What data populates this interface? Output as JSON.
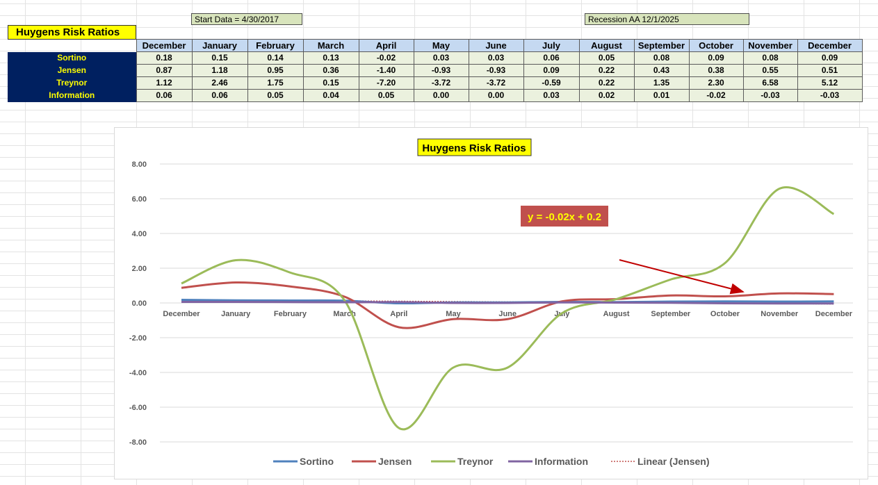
{
  "notes": {
    "start": "Start Data = 4/30/2017",
    "recession": "Recession AA 12/1/2025"
  },
  "sheet_title": "Huygens Risk Ratios",
  "table": {
    "months": [
      "December",
      "January",
      "February",
      "March",
      "April",
      "May",
      "June",
      "July",
      "August",
      "September",
      "October",
      "November",
      "December"
    ],
    "rows": [
      {
        "label": "Sortino",
        "values": [
          "0.18",
          "0.15",
          "0.14",
          "0.13",
          "-0.02",
          "0.03",
          "0.03",
          "0.06",
          "0.05",
          "0.08",
          "0.09",
          "0.08",
          "0.09"
        ]
      },
      {
        "label": "Jensen",
        "values": [
          "0.87",
          "1.18",
          "0.95",
          "0.36",
          "-1.40",
          "-0.93",
          "-0.93",
          "0.09",
          "0.22",
          "0.43",
          "0.38",
          "0.55",
          "0.51"
        ]
      },
      {
        "label": "Treynor",
        "values": [
          "1.12",
          "2.46",
          "1.75",
          "0.15",
          "-7.20",
          "-3.72",
          "-3.72",
          "-0.59",
          "0.22",
          "1.35",
          "2.30",
          "6.58",
          "5.12"
        ]
      },
      {
        "label": "Information",
        "values": [
          "0.06",
          "0.06",
          "0.05",
          "0.04",
          "0.05",
          "0.00",
          "0.00",
          "0.03",
          "0.02",
          "0.01",
          "-0.02",
          "-0.03",
          "-0.03"
        ]
      }
    ]
  },
  "chart_data": {
    "type": "line",
    "title": "Huygens Risk Ratios",
    "categories": [
      "December",
      "January",
      "February",
      "March",
      "April",
      "May",
      "June",
      "July",
      "August",
      "September",
      "October",
      "November",
      "December"
    ],
    "ylim": [
      -8,
      8
    ],
    "yticks": [
      "8.00",
      "6.00",
      "4.00",
      "2.00",
      "0.00",
      "-2.00",
      "-4.00",
      "-6.00",
      "-8.00"
    ],
    "ytick_values": [
      8,
      6,
      4,
      2,
      0,
      -2,
      -4,
      -6,
      -8
    ],
    "grid": true,
    "legend_position": "bottom",
    "series": [
      {
        "name": "Sortino",
        "color": "#4f81bd",
        "values": [
          0.18,
          0.15,
          0.14,
          0.13,
          -0.02,
          0.03,
          0.03,
          0.06,
          0.05,
          0.08,
          0.09,
          0.08,
          0.09
        ]
      },
      {
        "name": "Jensen",
        "color": "#c0504d",
        "values": [
          0.87,
          1.18,
          0.95,
          0.36,
          -1.4,
          -0.93,
          -0.93,
          0.09,
          0.22,
          0.43,
          0.38,
          0.55,
          0.51
        ]
      },
      {
        "name": "Treynor",
        "color": "#9bbb59",
        "values": [
          1.12,
          2.46,
          1.75,
          0.15,
          -7.2,
          -3.72,
          -3.72,
          -0.59,
          0.22,
          1.35,
          2.3,
          6.58,
          5.12
        ]
      },
      {
        "name": "Information",
        "color": "#8064a2",
        "values": [
          0.06,
          0.06,
          0.05,
          0.04,
          0.05,
          0.0,
          0.0,
          0.03,
          0.02,
          0.01,
          -0.02,
          -0.03,
          -0.03
        ]
      }
    ],
    "trendline": {
      "name": "Linear (Jensen)",
      "color": "#c0504d",
      "slope": -0.02,
      "intercept": 0.2
    },
    "equation_label": "y = -0.02x + 0.2",
    "equation_label_bg": "#c0504d",
    "equation_label_color": "#ffff00",
    "arrow_color": "#c00000"
  }
}
